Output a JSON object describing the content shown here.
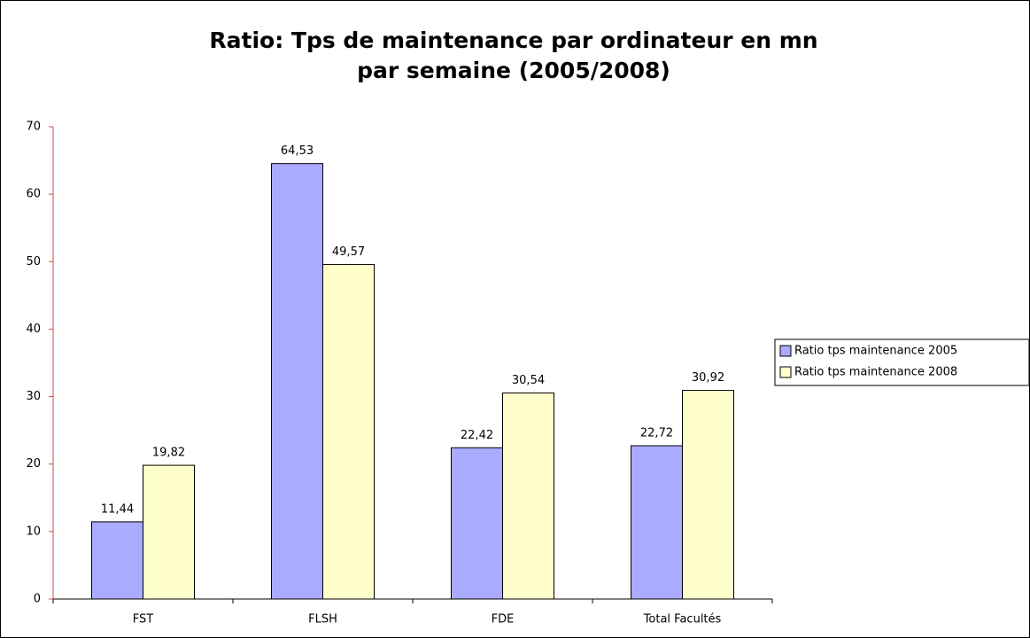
{
  "chart_data": {
    "type": "bar",
    "title": [
      "Ratio: Tps de maintenance par ordinateur en mn",
      "par semaine (2005/2008)"
    ],
    "categories": [
      "FST",
      "FLSH",
      "FDE",
      "Total Facultés"
    ],
    "series": [
      {
        "name": "Ratio tps maintenance 2005",
        "color": "#aaaaff",
        "values": [
          11.44,
          64.53,
          22.42,
          22.72
        ],
        "value_labels": [
          "11,44",
          "64,53",
          "22,42",
          "22,72"
        ]
      },
      {
        "name": "Ratio tps maintenance 2008",
        "color": "#ffffcc",
        "values": [
          19.82,
          49.57,
          30.54,
          30.92
        ],
        "value_labels": [
          "19,82",
          "49,57",
          "30,54",
          "30,92"
        ]
      }
    ],
    "ylim": [
      0,
      70
    ],
    "yticks": [
      0,
      10,
      20,
      30,
      40,
      50,
      60,
      70
    ],
    "grid": false,
    "legend": "right"
  }
}
